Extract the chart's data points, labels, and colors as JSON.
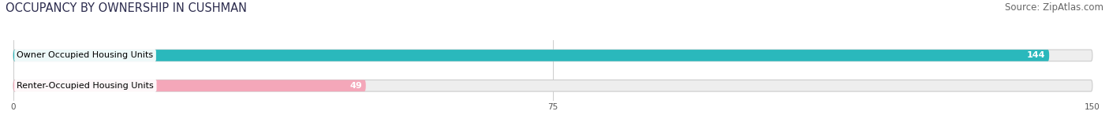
{
  "title": "OCCUPANCY BY OWNERSHIP IN CUSHMAN",
  "source": "Source: ZipAtlas.com",
  "categories": [
    "Owner Occupied Housing Units",
    "Renter-Occupied Housing Units"
  ],
  "values": [
    144,
    49
  ],
  "bar_colors": [
    "#2ab8bc",
    "#f4a7b9"
  ],
  "bar_bg_color": "#eeeeee",
  "xlim": [
    0,
    150
  ],
  "xticks": [
    0,
    75,
    150
  ],
  "title_fontsize": 10.5,
  "source_fontsize": 8.5,
  "label_fontsize": 8,
  "value_fontsize": 8,
  "fig_bg_color": "#ffffff",
  "bar_height": 0.38,
  "value_color": "#ffffff",
  "label_bg_color": "#ffffff",
  "grid_color": "#cccccc",
  "tick_color": "#555555"
}
